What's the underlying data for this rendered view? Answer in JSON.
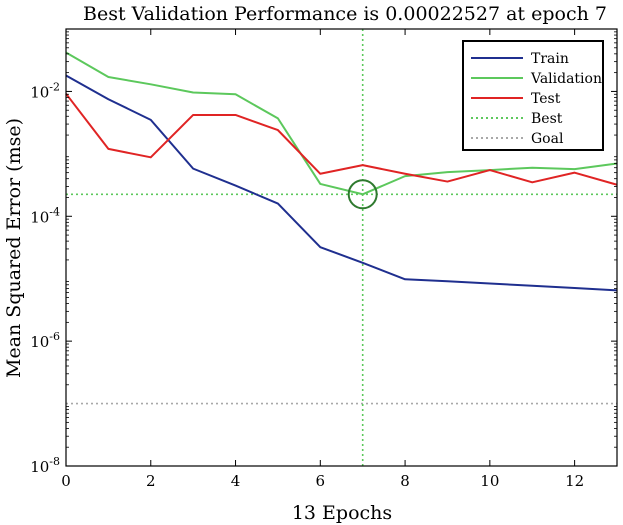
{
  "chart_data": {
    "type": "line",
    "title": "Best Validation Performance is 0.00022527 at epoch 7",
    "xlabel": "13 Epochs",
    "ylabel": "Mean Squared Error  (mse)",
    "yscale": "log",
    "xlim": [
      0,
      13
    ],
    "ylim": [
      1e-08,
      0.1
    ],
    "x_ticks": [
      0,
      2,
      4,
      6,
      8,
      10,
      12
    ],
    "y_ticks": [
      {
        "value": 1e-08,
        "base": "10",
        "exp": "-8"
      },
      {
        "value": 1e-06,
        "base": "10",
        "exp": "-6"
      },
      {
        "value": 0.0001,
        "base": "10",
        "exp": "-4"
      },
      {
        "value": 0.01,
        "base": "10",
        "exp": "-2"
      }
    ],
    "x": [
      0,
      1,
      2,
      3,
      4,
      5,
      6,
      7,
      8,
      9,
      10,
      11,
      12,
      13
    ],
    "series": [
      {
        "name": "Train",
        "color": "#1f2f8f",
        "style": "solid",
        "values": [
          0.018,
          0.0075,
          0.0035,
          0.00058,
          0.00031,
          0.00016,
          3.2e-05,
          1.8e-05,
          9.8e-06,
          9.1e-06,
          8.4e-06,
          7.7e-06,
          7.1e-06,
          6.5e-06
        ]
      },
      {
        "name": "Validation",
        "color": "#5cc85c",
        "style": "solid",
        "values": [
          0.042,
          0.017,
          0.013,
          0.0096,
          0.009,
          0.0037,
          0.00033,
          0.00022527,
          0.00044,
          0.00051,
          0.00055,
          0.0006,
          0.00057,
          0.0007
        ]
      },
      {
        "name": "Test",
        "color": "#e02424",
        "style": "solid",
        "values": [
          0.0092,
          0.0012,
          0.00088,
          0.0042,
          0.0042,
          0.0024,
          0.00048,
          0.00066,
          0.00048,
          0.00036,
          0.00055,
          0.00035,
          0.0005,
          0.00032
        ]
      }
    ],
    "best": {
      "name": "Best",
      "epoch": 7,
      "value": 0.00022527,
      "color": "#5cc85c",
      "style": "dotted"
    },
    "goal": {
      "name": "Goal",
      "value": 1e-07,
      "color": "#a8a8a8",
      "style": "dotted"
    },
    "legend": {
      "placement": "top-right",
      "entries": [
        {
          "label": "Train",
          "color": "#1f2f8f",
          "style": "solid"
        },
        {
          "label": "Validation",
          "color": "#5cc85c",
          "style": "solid"
        },
        {
          "label": "Test",
          "color": "#e02424",
          "style": "solid"
        },
        {
          "label": "Best",
          "color": "#5cc85c",
          "style": "dotted"
        },
        {
          "label": "Goal",
          "color": "#a8a8a8",
          "style": "dotted"
        }
      ]
    }
  }
}
